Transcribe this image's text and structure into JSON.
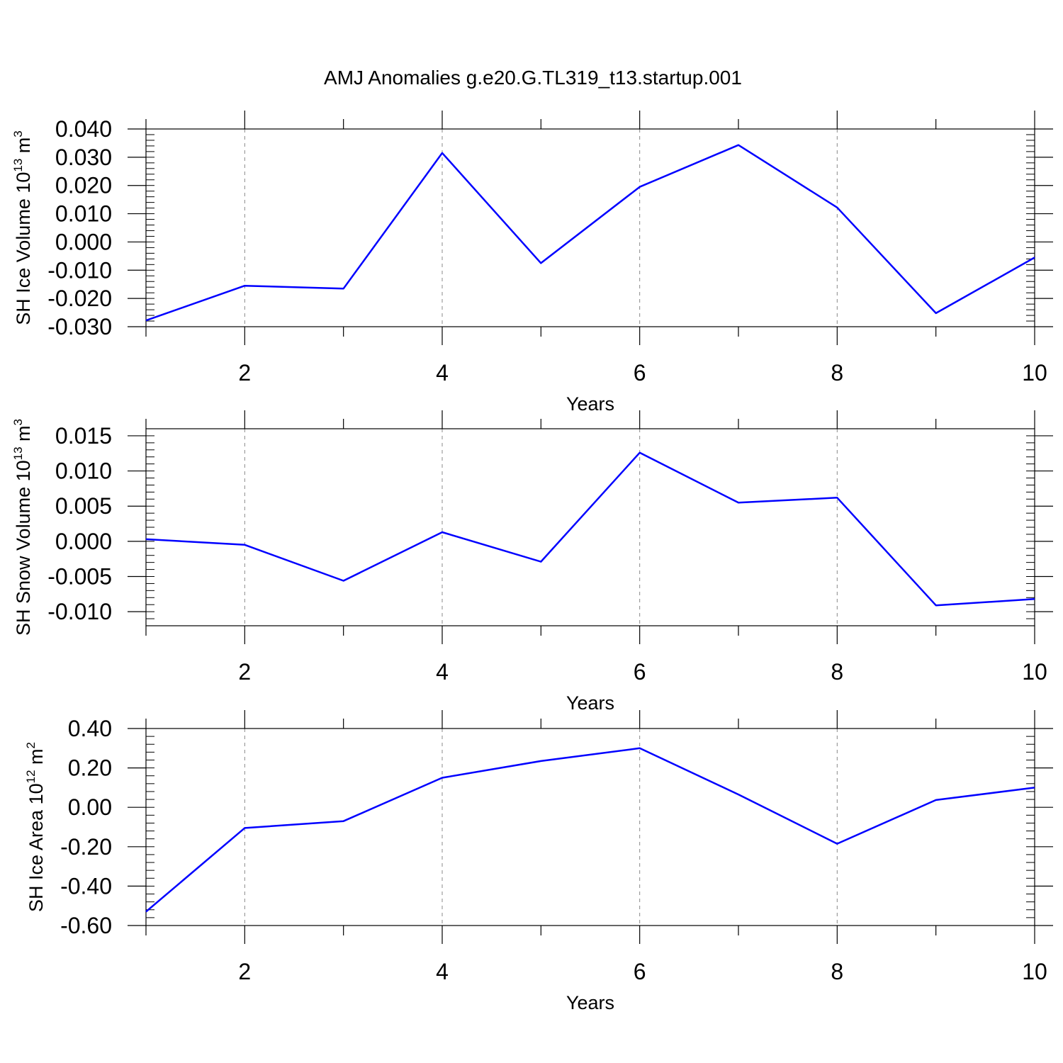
{
  "figure": {
    "title": "AMJ Anomalies g.e20.G.TL319_t13.startup.001"
  },
  "chart_data": [
    {
      "type": "line",
      "title": "",
      "xlabel": "Years",
      "ylabel": {
        "main": "SH Ice Volume 10",
        "sup": "13",
        "unit": " m",
        "unit_sup": "3"
      },
      "x": [
        1,
        2,
        3,
        4,
        5,
        6,
        7,
        8,
        9,
        10
      ],
      "xlim": [
        1,
        10
      ],
      "xticks": [
        2,
        4,
        6,
        8,
        10
      ],
      "xtick_labels": [
        "2",
        "4",
        "6",
        "8",
        "10"
      ],
      "ylim": [
        -0.03,
        0.04
      ],
      "yticks": [
        -0.03,
        -0.02,
        -0.01,
        0.0,
        0.01,
        0.02,
        0.03,
        0.04
      ],
      "ytick_labels": [
        "-0.030",
        "-0.020",
        "-0.010",
        "0.000",
        "0.010",
        "0.020",
        "0.030",
        "0.040"
      ],
      "grid": "vertical dashed at major x ticks",
      "color": "#0000ff",
      "series": [
        {
          "values": [
            -0.0278,
            -0.0155,
            -0.0165,
            0.0315,
            -0.0075,
            0.0195,
            0.0343,
            0.0122,
            -0.0252,
            -0.0055
          ]
        }
      ]
    },
    {
      "type": "line",
      "title": "",
      "xlabel": "Years",
      "ylabel": {
        "main": "SH Snow Volume 10",
        "sup": "13",
        "unit": " m",
        "unit_sup": "3"
      },
      "x": [
        1,
        2,
        3,
        4,
        5,
        6,
        7,
        8,
        9,
        10
      ],
      "xlim": [
        1,
        10
      ],
      "xticks": [
        2,
        4,
        6,
        8,
        10
      ],
      "xtick_labels": [
        "2",
        "4",
        "6",
        "8",
        "10"
      ],
      "ylim": [
        -0.012,
        0.016
      ],
      "yticks": [
        -0.01,
        -0.005,
        0.0,
        0.005,
        0.01,
        0.015
      ],
      "ytick_labels": [
        "-0.010",
        "-0.005",
        "0.000",
        "0.005",
        "0.010",
        "0.015"
      ],
      "grid": "vertical dashed at major x ticks",
      "color": "#0000ff",
      "series": [
        {
          "values": [
            0.0003,
            -0.0005,
            -0.0056,
            0.0013,
            -0.0029,
            0.0126,
            0.0055,
            0.0062,
            -0.0091,
            -0.0082
          ]
        }
      ]
    },
    {
      "type": "line",
      "title": "",
      "xlabel": "Years",
      "ylabel": {
        "main": "SH Ice Area 10",
        "sup": "12",
        "unit": " m",
        "unit_sup": "2"
      },
      "x": [
        1,
        2,
        3,
        4,
        5,
        6,
        7,
        8,
        9,
        10
      ],
      "xlim": [
        1,
        10
      ],
      "xticks": [
        2,
        4,
        6,
        8,
        10
      ],
      "xtick_labels": [
        "2",
        "4",
        "6",
        "8",
        "10"
      ],
      "ylim": [
        -0.6,
        0.4
      ],
      "yticks": [
        -0.6,
        -0.4,
        -0.2,
        0.0,
        0.2,
        0.4
      ],
      "ytick_labels": [
        "-0.60",
        "-0.40",
        "-0.20",
        "0.00",
        "0.20",
        "0.40"
      ],
      "grid": "vertical dashed at major x ticks",
      "color": "#0000ff",
      "series": [
        {
          "values": [
            -0.53,
            -0.105,
            -0.07,
            0.15,
            0.235,
            0.3,
            0.065,
            -0.185,
            0.037,
            0.1
          ]
        }
      ]
    }
  ]
}
